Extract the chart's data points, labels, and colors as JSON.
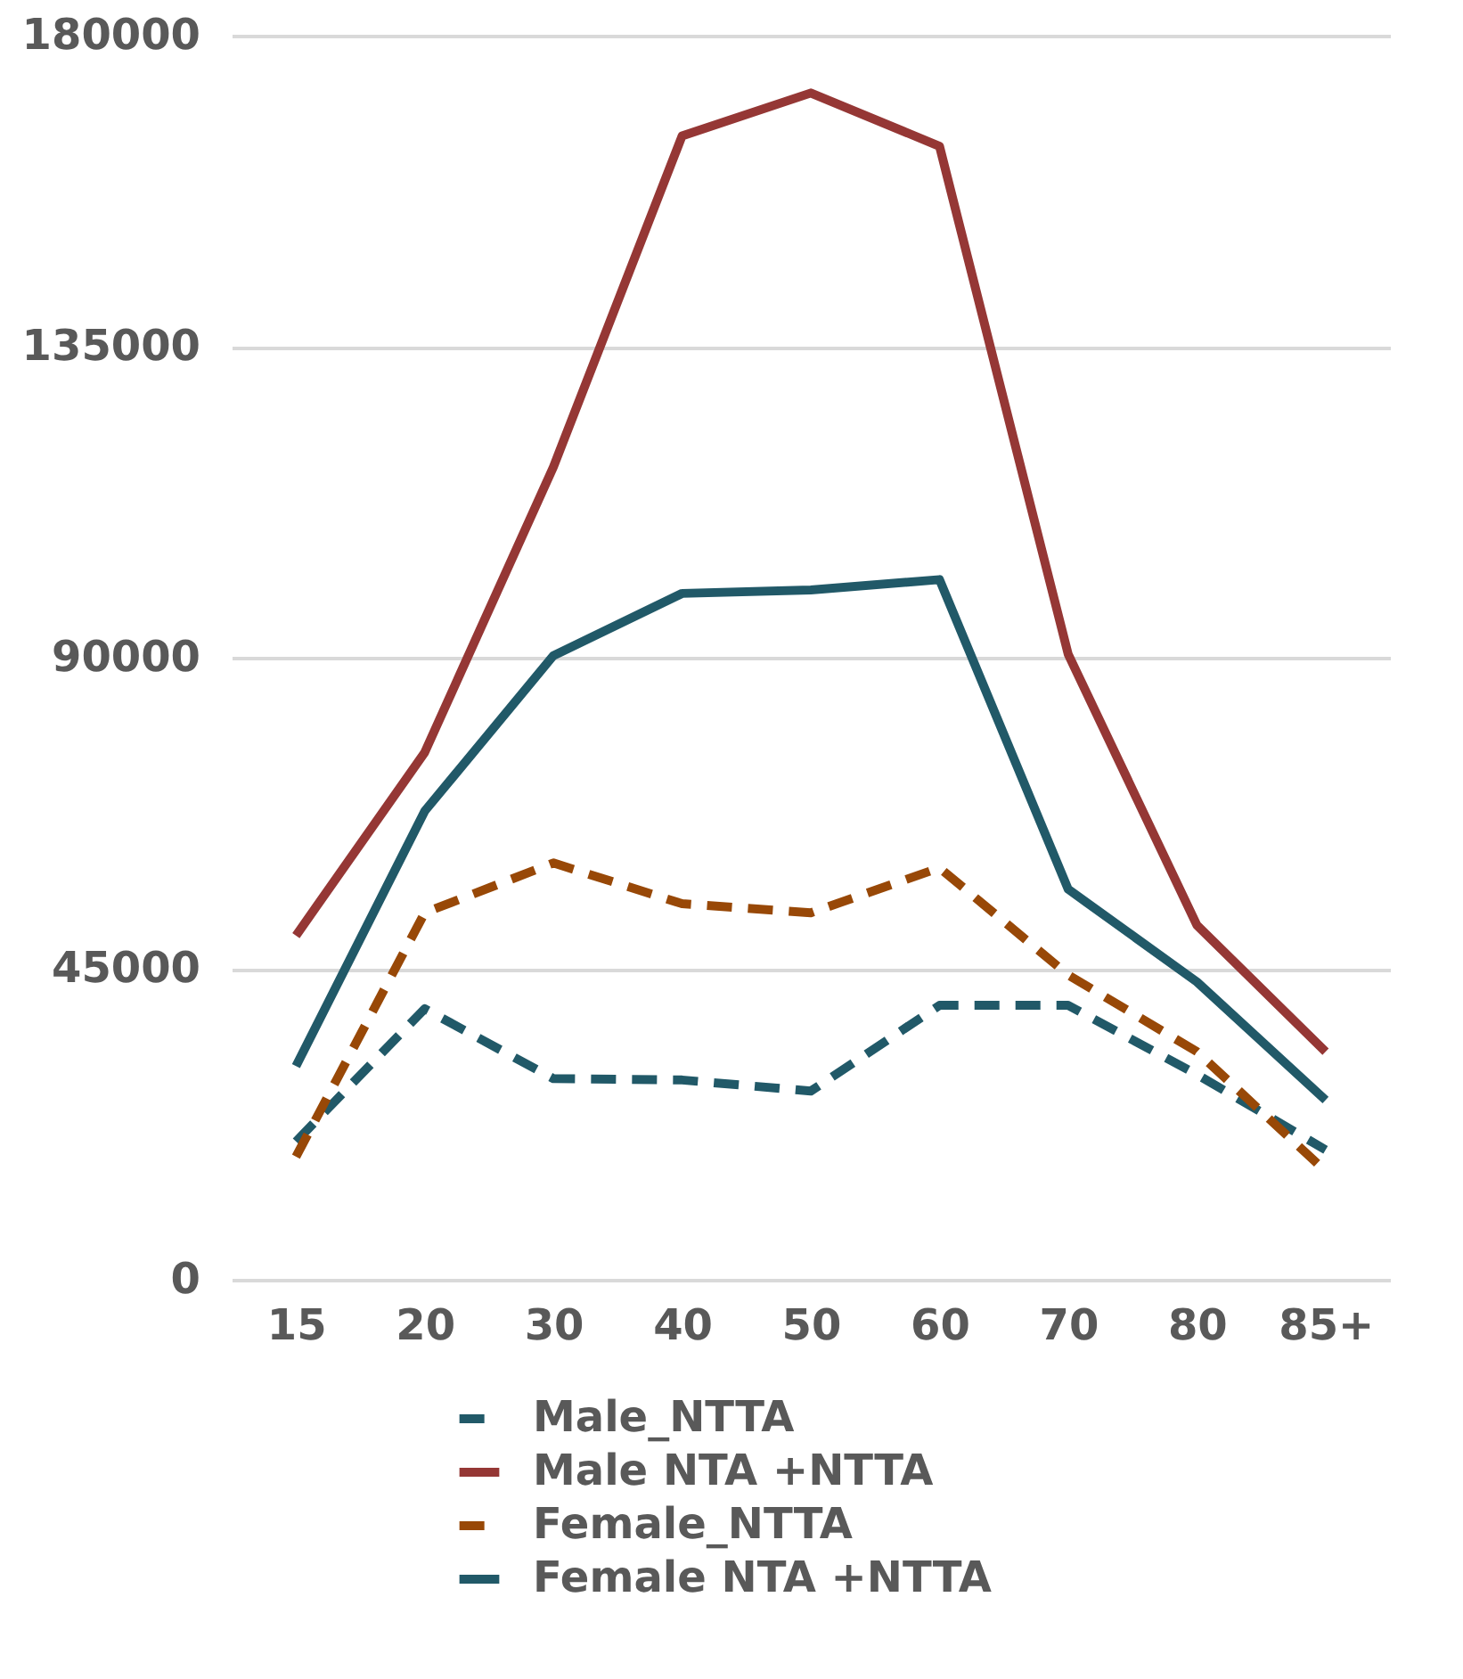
{
  "chart_data": {
    "type": "line",
    "categories": [
      "15",
      "20",
      "30",
      "40",
      "50",
      "60",
      "70",
      "80",
      "85+"
    ],
    "series": [
      {
        "name": "Male_NTTA",
        "color": "#215968",
        "line_style": "dashed",
        "values": [
          20000,
          39200,
          29100,
          28900,
          27300,
          39700,
          39700,
          29700,
          18800
        ]
      },
      {
        "name": "Male NTA +NTTA",
        "color": "#953735",
        "line_style": "solid",
        "values": [
          49800,
          76300,
          117600,
          165500,
          171700,
          164000,
          90500,
          51300,
          33000
        ]
      },
      {
        "name": "Female_NTTA",
        "color": "#984807",
        "line_style": "dashed",
        "values": [
          17800,
          53100,
          60300,
          54400,
          53100,
          59600,
          44100,
          33000,
          15700
        ]
      },
      {
        "name": "Female NTA +NTTA",
        "color": "#215968",
        "line_style": "solid",
        "values": [
          30900,
          67800,
          90300,
          99300,
          99800,
          101300,
          56500,
          43100,
          26000
        ]
      }
    ],
    "ylim": [
      0,
      180000
    ],
    "yticks": [
      0,
      45000,
      90000,
      135000,
      180000
    ],
    "grid": "y",
    "legend": "bottom",
    "marker": "none"
  }
}
